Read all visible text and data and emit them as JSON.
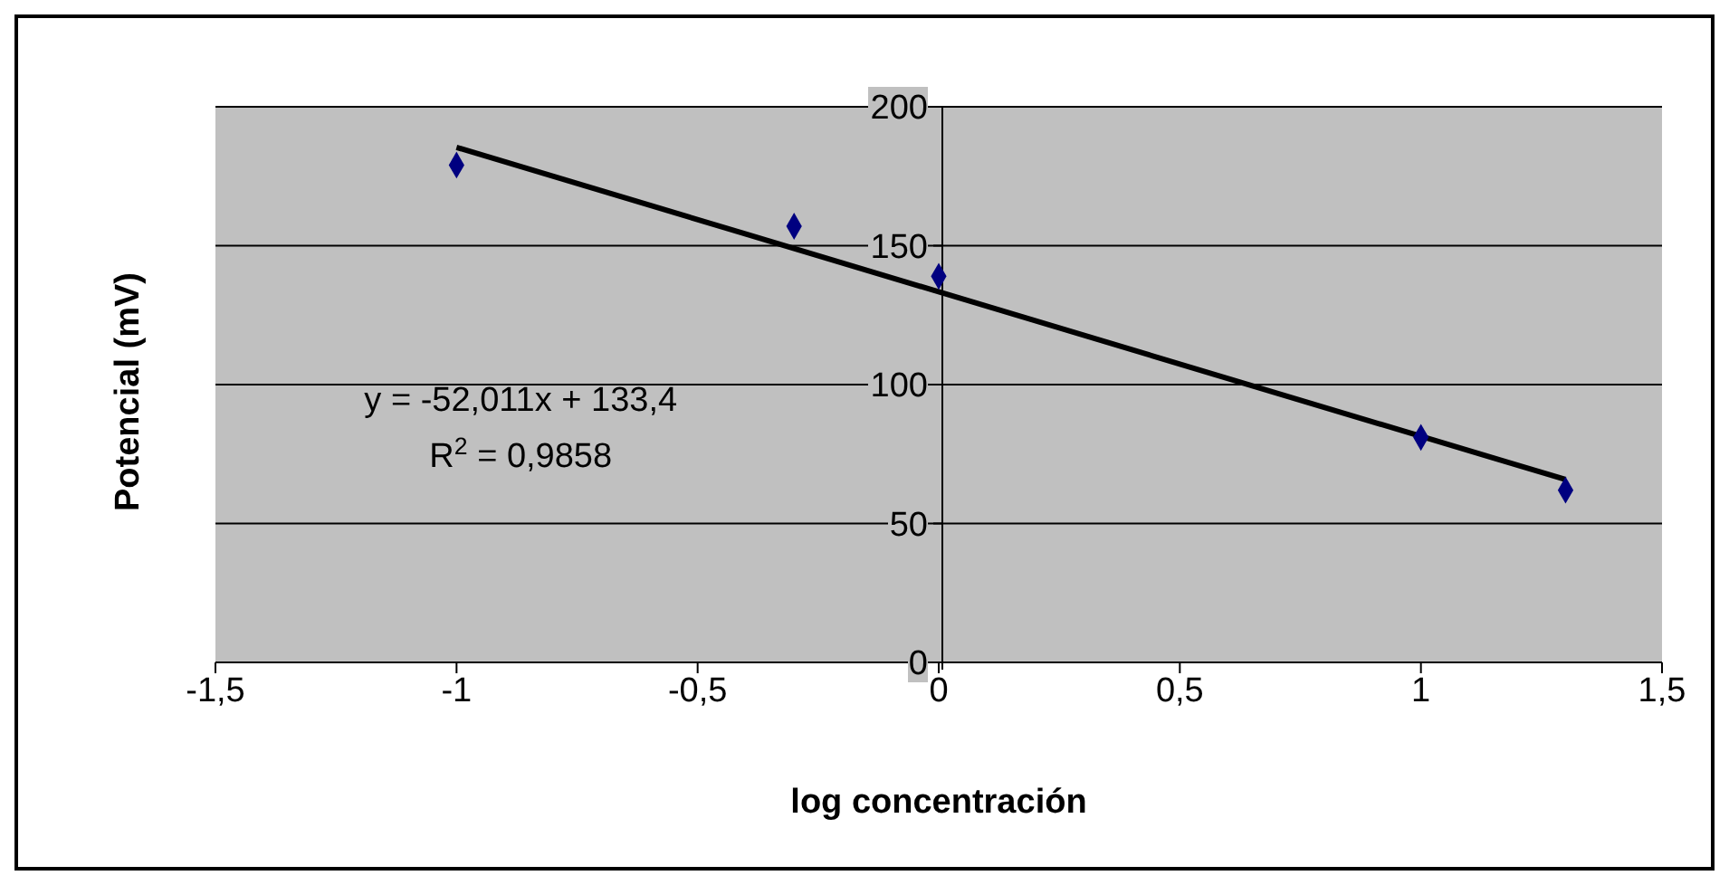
{
  "chart_data": {
    "type": "scatter",
    "xlabel": "log concentración",
    "ylabel": "Potencial (mV)",
    "series": [
      {
        "color": "#000080",
        "marker": "diamond",
        "x": [
          -1,
          -0.3,
          0,
          1,
          1.3
        ],
        "values": [
          179,
          157,
          139,
          81,
          62
        ]
      },
      {
        "type": "line",
        "color": "#000000",
        "marker": "none",
        "x": [
          -1,
          1.3
        ],
        "values": [
          185.4,
          65.8
        ]
      }
    ],
    "xlim": [
      -1.5,
      1.5
    ],
    "xticks": [
      {
        "value": -1.5,
        "label": "-1,5"
      },
      {
        "value": -1,
        "label": "-1"
      },
      {
        "value": -0.5,
        "label": "-0,5"
      },
      {
        "value": 0,
        "label": "0"
      },
      {
        "value": 0.5,
        "label": "0,5"
      },
      {
        "value": 1,
        "label": "1"
      },
      {
        "value": 1.5,
        "label": "1,5"
      }
    ],
    "ylim": [
      0,
      200
    ],
    "yticks": [
      0,
      50,
      100,
      150,
      200
    ],
    "grid": "y",
    "annotations": [
      "y = -52,011x + 133,4",
      "R$^{2}$ = 0,9858"
    ]
  }
}
